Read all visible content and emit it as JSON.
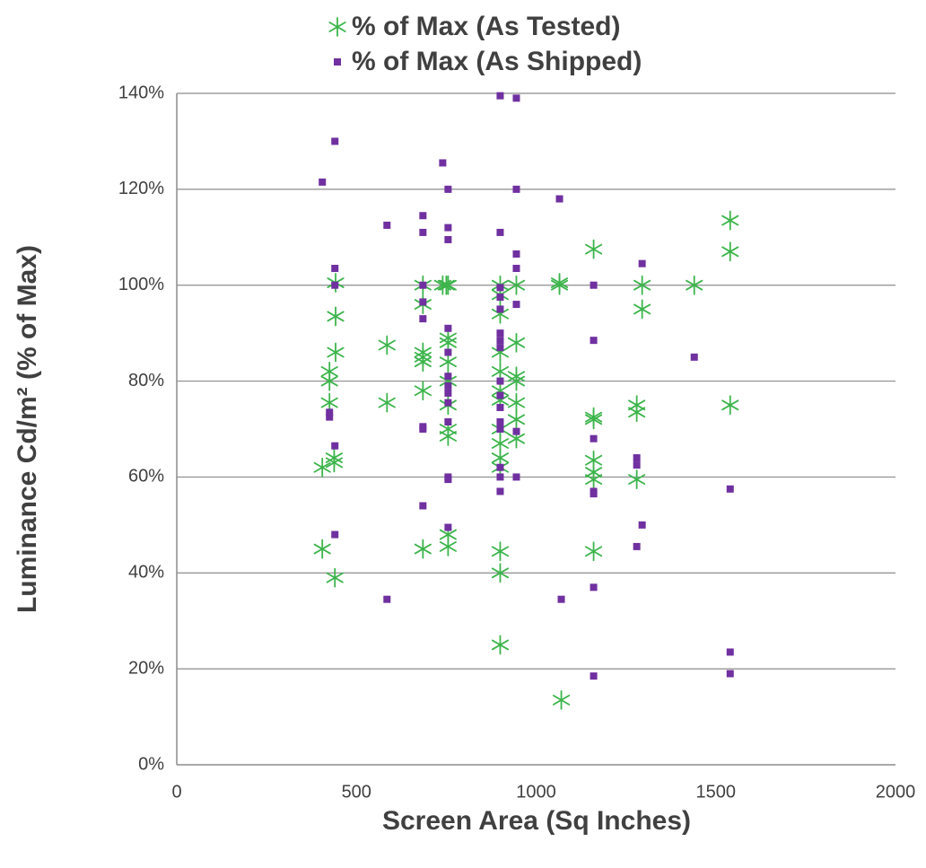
{
  "chart_data": {
    "type": "scatter",
    "title": "",
    "xlabel": "Screen Area (Sq Inches)",
    "ylabel": "Luminance Cd/m² (% of Max)",
    "xlim": [
      0,
      2000
    ],
    "ylim": [
      0,
      140
    ],
    "x_ticks": [
      0,
      500,
      1000,
      1500,
      2000
    ],
    "x_tick_labels": [
      "0",
      "500",
      "1000",
      "1500",
      "2000"
    ],
    "y_ticks": [
      0,
      20,
      40,
      60,
      80,
      100,
      120,
      140
    ],
    "y_tick_labels": [
      "0%",
      "20%",
      "40%",
      "60%",
      "80%",
      "100%",
      "120%",
      "140%"
    ],
    "grid": "horizontal",
    "legend_position": "top",
    "series": [
      {
        "name": "% of Max (As Tested)",
        "marker": "asterisk",
        "color": "#3cb44b",
        "points": [
          [
            405,
            62
          ],
          [
            405,
            45
          ],
          [
            425,
            82
          ],
          [
            425,
            80
          ],
          [
            425,
            75.5
          ],
          [
            438,
            64
          ],
          [
            438,
            63
          ],
          [
            440,
            39
          ],
          [
            442,
            100.5
          ],
          [
            442,
            93.5
          ],
          [
            442,
            86
          ],
          [
            585,
            87.5
          ],
          [
            585,
            75.5
          ],
          [
            685,
            100
          ],
          [
            685,
            96
          ],
          [
            685,
            86
          ],
          [
            685,
            85
          ],
          [
            685,
            84
          ],
          [
            685,
            78
          ],
          [
            685,
            45
          ],
          [
            740,
            100
          ],
          [
            750,
            100
          ],
          [
            755,
            100
          ],
          [
            755,
            89
          ],
          [
            755,
            88
          ],
          [
            755,
            84
          ],
          [
            755,
            80
          ],
          [
            755,
            75
          ],
          [
            755,
            70
          ],
          [
            755,
            68.5
          ],
          [
            755,
            48
          ],
          [
            755,
            45.5
          ],
          [
            900,
            100
          ],
          [
            900,
            98
          ],
          [
            900,
            94
          ],
          [
            900,
            86
          ],
          [
            900,
            82
          ],
          [
            900,
            78
          ],
          [
            900,
            76
          ],
          [
            900,
            70
          ],
          [
            900,
            67
          ],
          [
            900,
            64
          ],
          [
            900,
            62
          ],
          [
            900,
            44.5
          ],
          [
            900,
            40
          ],
          [
            900,
            25
          ],
          [
            945,
            100
          ],
          [
            945,
            88
          ],
          [
            945,
            81
          ],
          [
            945,
            80
          ],
          [
            945,
            75.5
          ],
          [
            945,
            72
          ],
          [
            945,
            68
          ],
          [
            1065,
            100.5
          ],
          [
            1065,
            100
          ],
          [
            1070,
            13.5
          ],
          [
            1160,
            107.5
          ],
          [
            1160,
            72.5
          ],
          [
            1160,
            72
          ],
          [
            1160,
            63.5
          ],
          [
            1160,
            61
          ],
          [
            1160,
            59.5
          ],
          [
            1160,
            44.5
          ],
          [
            1280,
            75
          ],
          [
            1280,
            73.5
          ],
          [
            1280,
            59.5
          ],
          [
            1295,
            100
          ],
          [
            1295,
            95
          ],
          [
            1440,
            100
          ],
          [
            1540,
            113.5
          ],
          [
            1540,
            107
          ],
          [
            1540,
            75
          ]
        ]
      },
      {
        "name": "% of Max (As Shipped)",
        "marker": "square",
        "color": "#7030a0",
        "points": [
          [
            405,
            121.5
          ],
          [
            425,
            73.5
          ],
          [
            425,
            72.5
          ],
          [
            440,
            130
          ],
          [
            440,
            103.5
          ],
          [
            440,
            100
          ],
          [
            440,
            66.5
          ],
          [
            440,
            48
          ],
          [
            585,
            112.5
          ],
          [
            585,
            34.5
          ],
          [
            685,
            114.5
          ],
          [
            685,
            111
          ],
          [
            685,
            100
          ],
          [
            685,
            96.5
          ],
          [
            685,
            93
          ],
          [
            685,
            70.5
          ],
          [
            685,
            70
          ],
          [
            685,
            54
          ],
          [
            740,
            125.5
          ],
          [
            755,
            120
          ],
          [
            755,
            112
          ],
          [
            755,
            109.5
          ],
          [
            755,
            91
          ],
          [
            755,
            86
          ],
          [
            755,
            81
          ],
          [
            755,
            79
          ],
          [
            755,
            77.5
          ],
          [
            755,
            75.5
          ],
          [
            755,
            71.5
          ],
          [
            755,
            60
          ],
          [
            755,
            59.5
          ],
          [
            755,
            49.5
          ],
          [
            900,
            139.5
          ],
          [
            900,
            111
          ],
          [
            900,
            99.5
          ],
          [
            900,
            97.5
          ],
          [
            900,
            95
          ],
          [
            900,
            90
          ],
          [
            900,
            88.5
          ],
          [
            900,
            87
          ],
          [
            900,
            80
          ],
          [
            900,
            77
          ],
          [
            900,
            74.5
          ],
          [
            900,
            71.5
          ],
          [
            900,
            70
          ],
          [
            900,
            62
          ],
          [
            900,
            60
          ],
          [
            900,
            57
          ],
          [
            945,
            139
          ],
          [
            945,
            120
          ],
          [
            945,
            106.5
          ],
          [
            945,
            103.5
          ],
          [
            945,
            96
          ],
          [
            945,
            69.5
          ],
          [
            945,
            60
          ],
          [
            1065,
            118
          ],
          [
            1070,
            34.5
          ],
          [
            1160,
            100
          ],
          [
            1160,
            88.5
          ],
          [
            1160,
            68
          ],
          [
            1160,
            57
          ],
          [
            1160,
            56.5
          ],
          [
            1160,
            37
          ],
          [
            1160,
            18.5
          ],
          [
            1280,
            64
          ],
          [
            1280,
            62.5
          ],
          [
            1280,
            45.5
          ],
          [
            1295,
            104.5
          ],
          [
            1295,
            50
          ],
          [
            1440,
            85
          ],
          [
            1540,
            57.5
          ],
          [
            1540,
            23.5
          ],
          [
            1540,
            19
          ]
        ]
      }
    ]
  }
}
